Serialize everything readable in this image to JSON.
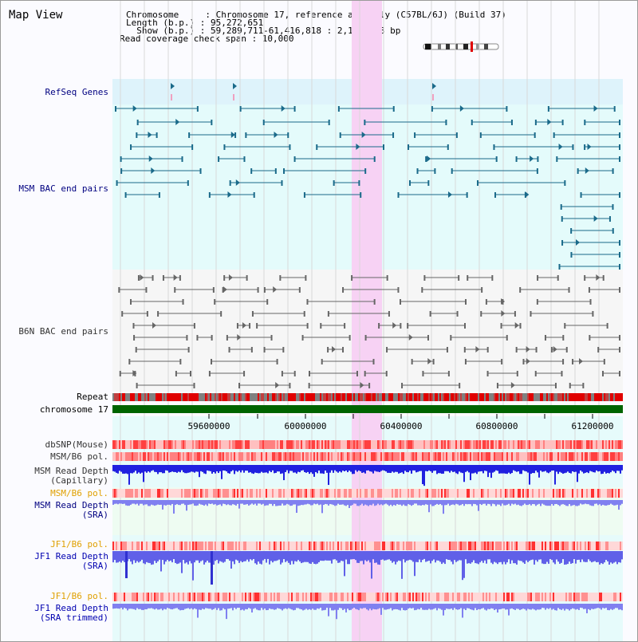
{
  "title": "Map View",
  "info": {
    "chromosome": "Chromosome     : Chromosome 17, reference assembly (C57BL/6J) (Build 37)",
    "length": "Length (b.p.) : 95,272,651",
    "show": "  Show (b.p.) : 59,289,711-61,416,818 : 2,127,108 bp",
    "coverage": "Read coverage check span : 10,000"
  },
  "tracks": {
    "refseq": "RefSeq Genes",
    "msm_bac": "MSM BAC end pairs",
    "b6n_bac": "B6N BAC end pairs",
    "repeat": "Repeat",
    "chromosome": "chromosome 17",
    "dbsnp": "dbSNP(Mouse)",
    "msm_pol1": "MSM/B6 pol.",
    "msm_depth_cap1": "MSM Read Depth",
    "msm_depth_cap2": "(Capillary)",
    "msm_pol2": "MSM/B6 pol.",
    "msm_depth_sra1": "MSM Read Depth",
    "msm_depth_sra2": "(SRA)",
    "jf1_pol1": "JF1/B6 pol.",
    "jf1_depth1": "JF1 Read Depth",
    "jf1_depth2": "(SRA)",
    "jf1_pol2": "JF1/B6 pol.",
    "jf1_trim1": "JF1 Read Depth",
    "jf1_trim2": "(SRA trimmed)"
  },
  "axis": {
    "ticks": [
      "59600000",
      "60000000",
      "60400000",
      "60800000",
      "61200000"
    ]
  },
  "colors": {
    "navy": "#000080",
    "orange": "#e0a000",
    "msm_feature": "#1a6a8a",
    "b6n_feature": "#666666",
    "highlight": "#f7d2f4",
    "chromosome_bar": "#006400"
  }
}
